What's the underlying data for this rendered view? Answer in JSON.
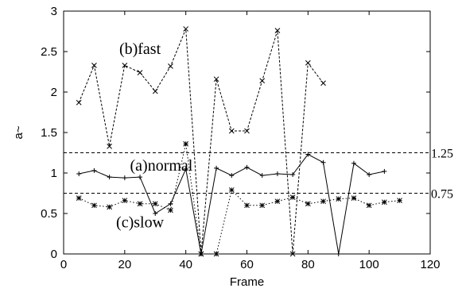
{
  "chart_data": {
    "type": "line",
    "title": "",
    "xlabel": "Frame",
    "ylabel": "a~",
    "xlim": [
      0,
      120
    ],
    "ylim": [
      0,
      3
    ],
    "xticks": [
      "0",
      "20",
      "40",
      "60",
      "80",
      "100",
      "120"
    ],
    "yticks": [
      "0",
      "0.5",
      "1",
      "1.5",
      "2",
      "2.5",
      "3"
    ],
    "grid": false,
    "series": [
      {
        "name": "(b)fast",
        "line_style": "dashed",
        "marker": "x",
        "color": "#000000",
        "x": [
          5,
          10,
          15,
          20,
          25,
          30,
          35,
          40,
          45,
          50,
          55,
          60,
          65,
          70,
          75,
          80,
          85
        ],
        "y": [
          1.87,
          2.33,
          1.33,
          2.33,
          2.24,
          2.01,
          2.32,
          2.78,
          0.0,
          2.16,
          1.52,
          1.52,
          2.14,
          2.76,
          0.0,
          2.36,
          2.11
        ]
      },
      {
        "name": "(a)normal",
        "line_style": "solid",
        "marker": "+",
        "color": "#000000",
        "x": [
          5,
          10,
          15,
          20,
          25,
          30,
          35,
          40,
          45,
          50,
          55,
          60,
          65,
          70,
          75,
          80,
          85,
          90,
          95,
          100,
          105
        ],
        "y": [
          0.99,
          1.03,
          0.95,
          0.94,
          0.95,
          0.5,
          0.62,
          1.05,
          0.0,
          1.06,
          0.97,
          1.07,
          0.97,
          0.99,
          0.98,
          1.23,
          1.13,
          0.0,
          1.12,
          0.98,
          1.02
        ]
      },
      {
        "name": "(c)slow",
        "line_style": "dotted",
        "marker": "*",
        "color": "#000000",
        "x": [
          5,
          10,
          15,
          20,
          25,
          30,
          35,
          40,
          45,
          50,
          55,
          60,
          65,
          70,
          75,
          80,
          85,
          90,
          95,
          100,
          105,
          110
        ],
        "y": [
          0.69,
          0.6,
          0.58,
          0.66,
          0.62,
          0.62,
          0.54,
          1.36,
          0.0,
          0.0,
          0.79,
          0.6,
          0.6,
          0.65,
          0.7,
          0.62,
          0.65,
          0.68,
          0.69,
          0.6,
          0.64,
          0.66
        ]
      }
    ],
    "reference_lines": [
      {
        "y": 1.25,
        "label": "1.25",
        "line_style": "dashed"
      },
      {
        "y": 0.75,
        "label": "0.75",
        "line_style": "dashed"
      }
    ],
    "annotations": [
      {
        "text": "(b)fast",
        "x": 25,
        "y": 2.47
      },
      {
        "text": "(a)normal",
        "x": 32,
        "y": 1.03
      },
      {
        "text": "(c)slow",
        "x": 25,
        "y": 0.33
      }
    ]
  }
}
